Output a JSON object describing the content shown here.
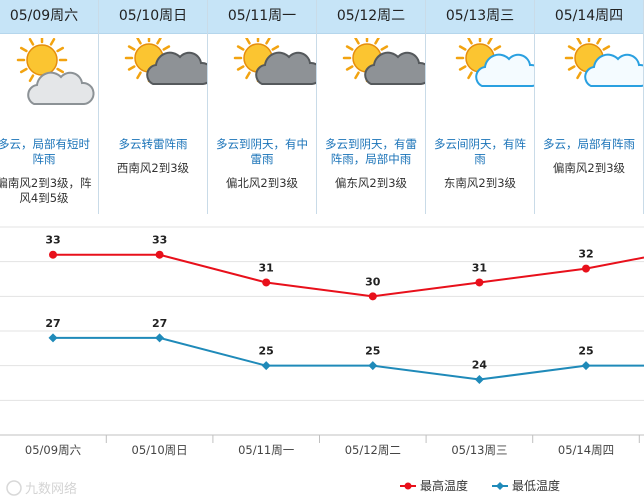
{
  "days": [
    {
      "date": "05/09周六",
      "icon": "partly-cloudy-icon",
      "desc": [
        "多云，局部有短时",
        "阵雨"
      ],
      "wind": [
        "偏南风2到3级，阵",
        "风4到5级"
      ]
    },
    {
      "date": "05/10周日",
      "icon": "thunder-shower-icon",
      "desc": [
        "多云转雷阵雨"
      ],
      "wind": [
        "西南风2到3级"
      ]
    },
    {
      "date": "05/11周一",
      "icon": "cloudy-shower-icon",
      "desc": [
        "多云到阴天，有中",
        "雷雨"
      ],
      "wind": [
        "偏北风2到3级"
      ]
    },
    {
      "date": "05/12周二",
      "icon": "cloudy-thunder-icon",
      "desc": [
        "多云到阴天，有雷",
        "阵雨，局部中雨"
      ],
      "wind": [
        "偏东风2到3级"
      ]
    },
    {
      "date": "05/13周三",
      "icon": "sunny-cloudy-icon",
      "desc": [
        "多云间阴天，有阵",
        "雨"
      ],
      "wind": [
        "东南风2到3级"
      ]
    },
    {
      "date": "05/14周四",
      "icon": "sunny-cloudy-icon",
      "desc": [
        "多云，局部有阵雨"
      ],
      "wind": [
        "偏南风2到3级"
      ]
    }
  ],
  "chart_data": {
    "type": "line",
    "categories": [
      "05/09周六",
      "05/10周日",
      "05/11周一",
      "05/12周二",
      "05/13周三",
      "05/14周四"
    ],
    "series": [
      {
        "name": "最高温度",
        "color": "#e8101b",
        "values": [
          33,
          33,
          31,
          30,
          31,
          32
        ]
      },
      {
        "name": "最低温度",
        "color": "#1f8ab9",
        "values": [
          27,
          27,
          25,
          25,
          24,
          25
        ]
      }
    ],
    "ylim": [
      20,
      36
    ],
    "grid": true,
    "legend": "bottom-right"
  },
  "watermark": "九数网络"
}
